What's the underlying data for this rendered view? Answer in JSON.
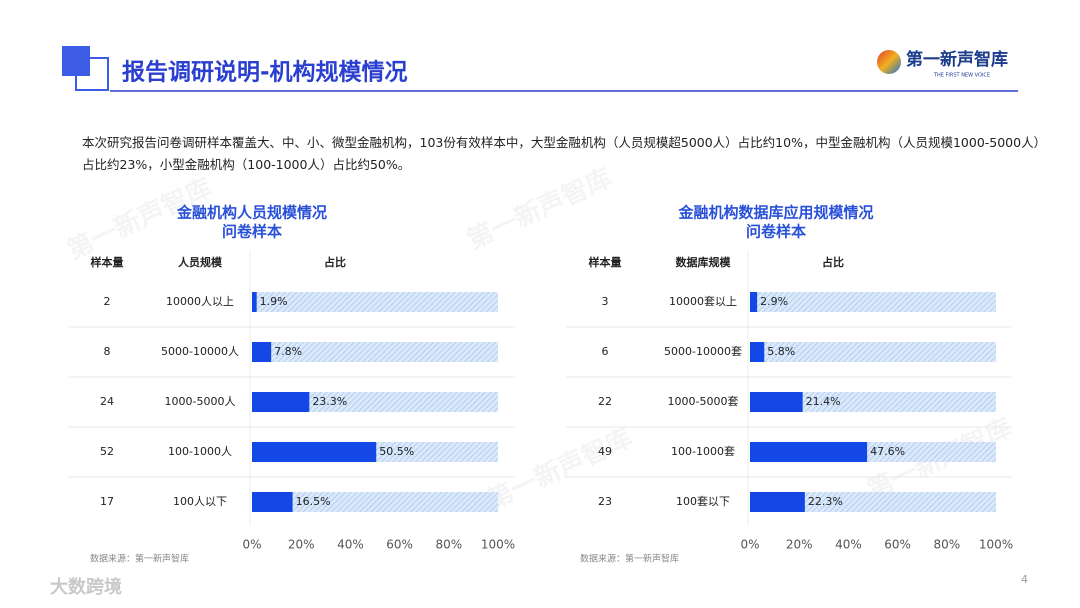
{
  "header": {
    "title": "报告调研说明-机构规模情况",
    "logo": "第一新声智库",
    "logo_subtitle": "THE FIRST NEW VOICE"
  },
  "description": "本次研究报告问卷调研样本覆盖大、中、小、微型金融机构，103份有效样本中，大型金融机构（人员规模超5000人）占比约10%，中型金融机构（人员规模1000-5000人）占比约23%，小型金融机构（100-1000人）占比约50%。",
  "chart_data": [
    {
      "type": "bar",
      "title": "金融机构人员规模情况",
      "subtitle": "问卷样本",
      "columns": [
        "样本量",
        "人员规模",
        "占比"
      ],
      "sample_counts": [
        2,
        8,
        24,
        52,
        17
      ],
      "categories": [
        "10000人以上",
        "5000-10000人",
        "1000-5000人",
        "100-1000人",
        "100人以下"
      ],
      "values": [
        1.9,
        7.8,
        23.3,
        50.5,
        16.5
      ],
      "value_labels": [
        "1.9%",
        "7.8%",
        "23.3%",
        "50.5%",
        "16.5%"
      ],
      "color": "#1448e6",
      "xlim": [
        0,
        100
      ],
      "xticks": [
        {
          "value": 0,
          "label": "0%"
        },
        {
          "value": 20,
          "label": "20%"
        },
        {
          "value": 40,
          "label": "40%"
        },
        {
          "value": 60,
          "label": "60%"
        },
        {
          "value": 80,
          "label": "80%"
        },
        {
          "value": 100,
          "label": "100%"
        }
      ],
      "source": "数据来源：第一新声智库"
    },
    {
      "type": "bar",
      "title": "金融机构数据库应用规模情况",
      "subtitle": "问卷样本",
      "columns": [
        "样本量",
        "数据库规模",
        "占比"
      ],
      "sample_counts": [
        3,
        6,
        22,
        49,
        23
      ],
      "categories": [
        "10000套以上",
        "5000-10000套",
        "1000-5000套",
        "100-1000套",
        "100套以下"
      ],
      "values": [
        2.9,
        5.8,
        21.4,
        47.6,
        22.3
      ],
      "value_labels": [
        "2.9%",
        "5.8%",
        "21.4%",
        "47.6%",
        "22.3%"
      ],
      "color": "#1448e6",
      "xlim": [
        0,
        100
      ],
      "xticks": [
        {
          "value": 0,
          "label": "0%"
        },
        {
          "value": 20,
          "label": "20%"
        },
        {
          "value": 40,
          "label": "40%"
        },
        {
          "value": 60,
          "label": "60%"
        },
        {
          "value": 80,
          "label": "80%"
        },
        {
          "value": 100,
          "label": "100%"
        }
      ],
      "source": "数据来源：第一新声智库"
    }
  ],
  "page_number": "4",
  "watermark": "第一新声智库",
  "corner_mark": "大数跨境"
}
